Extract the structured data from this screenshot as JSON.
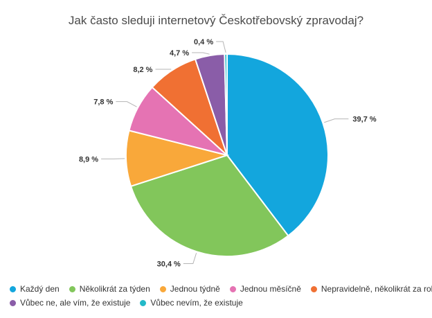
{
  "chart_data": {
    "type": "pie",
    "title": "Jak často sleduji internetový Českotřebovský zpravodaj?",
    "slices": [
      {
        "name": "Každý den",
        "value": 39.7,
        "label": "39,7 %",
        "color": "#13a6dd"
      },
      {
        "name": "Několikrát za týden",
        "value": 30.4,
        "label": "30,4 %",
        "color": "#82c65b"
      },
      {
        "name": "Jednou týdně",
        "value": 8.9,
        "label": "8,9 %",
        "color": "#f9a83a"
      },
      {
        "name": "Jednou měsíčně",
        "value": 7.8,
        "label": "7,8 %",
        "color": "#e573b3"
      },
      {
        "name": "Nepravidelně, několikrát za rok",
        "value": 8.2,
        "label": "8,2 %",
        "color": "#f07033"
      },
      {
        "name": "Vůbec ne, ale vím, že existuje",
        "value": 4.7,
        "label": "4,7 %",
        "color": "#8a5da8"
      },
      {
        "name": "Vůbec nevím, že existuje",
        "value": 0.4,
        "label": "0,4 %",
        "color": "#23b9c8"
      }
    ],
    "legend_position": "bottom"
  }
}
